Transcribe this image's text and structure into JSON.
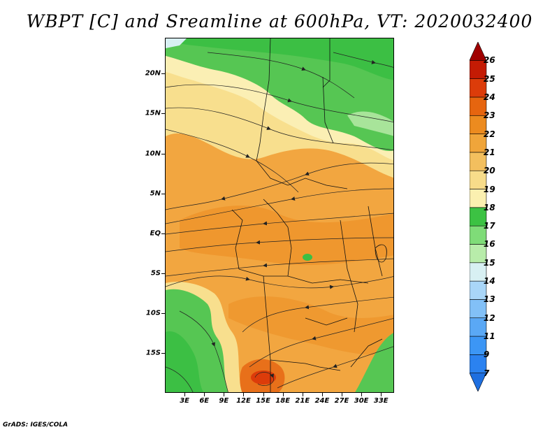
{
  "title": "WBPT [C] and Sreamline at 600hPa, VT: 2020032400",
  "credit": "GrADS: IGES/COLA",
  "map": {
    "lat_labels": [
      "20N",
      "15N",
      "10N",
      "5N",
      "EQ",
      "5S",
      "10S",
      "15S"
    ],
    "lon_labels": [
      "3E",
      "6E",
      "9E",
      "12E",
      "15E",
      "18E",
      "21E",
      "24E",
      "27E",
      "30E",
      "33E"
    ],
    "lat_range": [
      -20,
      24.5
    ],
    "lon_range": [
      0,
      35
    ],
    "lat_values": [
      20,
      15,
      10,
      5,
      0,
      -5,
      -10,
      -15
    ],
    "lon_values": [
      3,
      6,
      9,
      12,
      15,
      18,
      21,
      24,
      27,
      30,
      33
    ]
  },
  "colorbar": {
    "labels": [
      "7",
      "9",
      "11",
      "12",
      "13",
      "14",
      "15",
      "16",
      "17",
      "18",
      "19",
      "20",
      "21",
      "22",
      "23",
      "24",
      "25",
      "26"
    ],
    "colors": [
      "#1e6fe0",
      "#2b82f0",
      "#3c96f5",
      "#5aa8f5",
      "#82c0f7",
      "#a9d6f8",
      "#d8f0f3",
      "#b8ecaa",
      "#7fdc78",
      "#3cc243",
      "#fbf0b0",
      "#f7dc8a",
      "#f3bf5e",
      "#f0a53a",
      "#ec8b1f",
      "#e6650f",
      "#dc3c0a",
      "#c41b04",
      "#a00000"
    ]
  }
}
